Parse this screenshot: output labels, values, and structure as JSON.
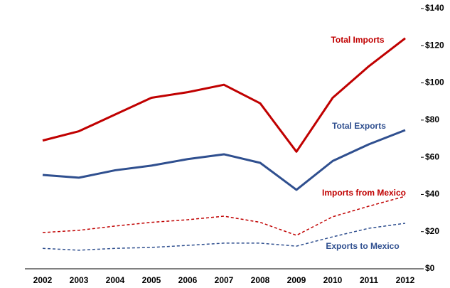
{
  "chart_data": {
    "type": "line",
    "categories": [
      "2002",
      "2003",
      "2004",
      "2005",
      "2006",
      "2007",
      "2008",
      "2009",
      "2010",
      "2011",
      "2012"
    ],
    "series": [
      {
        "name": "Total Imports",
        "color": "#c00000",
        "linestyle": "solid",
        "values": [
          69,
          74,
          83,
          92,
          95,
          99,
          89,
          63,
          92,
          109,
          124
        ]
      },
      {
        "name": "Total Exports",
        "color": "#2f4f8f",
        "linestyle": "solid",
        "values": [
          50.5,
          49,
          53,
          55.5,
          59,
          61.6,
          57,
          42.5,
          58,
          67,
          74.6
        ]
      },
      {
        "name": "Imports from Mexico",
        "color": "#c00000",
        "linestyle": "dashed",
        "values": [
          19.5,
          20.7,
          23,
          25,
          26.4,
          28.3,
          25,
          18,
          28,
          33.7,
          39
        ]
      },
      {
        "name": "Exports to Mexico",
        "color": "#2f4f8f",
        "linestyle": "dashed",
        "values": [
          11,
          10,
          11,
          11.5,
          12.6,
          13.8,
          13.8,
          12.2,
          17.2,
          21.8,
          24.5
        ]
      }
    ],
    "ylim": [
      0,
      140
    ],
    "yticks": [
      {
        "value": 0,
        "label": "$0"
      },
      {
        "value": 20,
        "label": "$20"
      },
      {
        "value": 40,
        "label": "$40"
      },
      {
        "value": 60,
        "label": "$60"
      },
      {
        "value": 80,
        "label": "$80"
      },
      {
        "value": 100,
        "label": "$100"
      },
      {
        "value": 120,
        "label": "$120"
      },
      {
        "value": 140,
        "label": "$140"
      }
    ],
    "y_axis_side": "right",
    "grid": false
  }
}
